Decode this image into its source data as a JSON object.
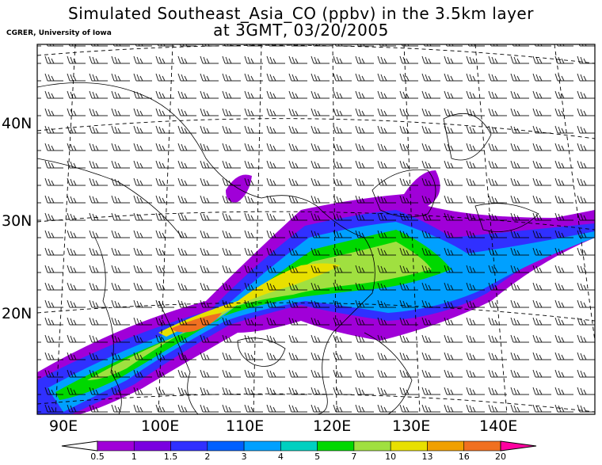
{
  "title_line1": "Simulated Southeast_Asia_CO (ppbv) in the 3.5km layer",
  "title_line2": "at 3GMT, 03/20/2005",
  "credit": "CGRER, University of Iowa",
  "lat_labels": [
    "40N",
    "30N",
    "20N"
  ],
  "lon_labels": [
    "90E",
    "100E",
    "110E",
    "120E",
    "130E",
    "140E"
  ],
  "colorbar": {
    "levels": [
      "0.5",
      "1",
      "1.5",
      "2",
      "3",
      "4",
      "5",
      "7",
      "10",
      "13",
      "16",
      "20"
    ],
    "colors": [
      "#a000d8",
      "#7a00e0",
      "#3030ff",
      "#0060ff",
      "#00a0ff",
      "#00d0c0",
      "#00d800",
      "#a0e040",
      "#e8e000",
      "#f0a000",
      "#f07020",
      "#ff3060",
      "#ff00a0"
    ]
  }
}
